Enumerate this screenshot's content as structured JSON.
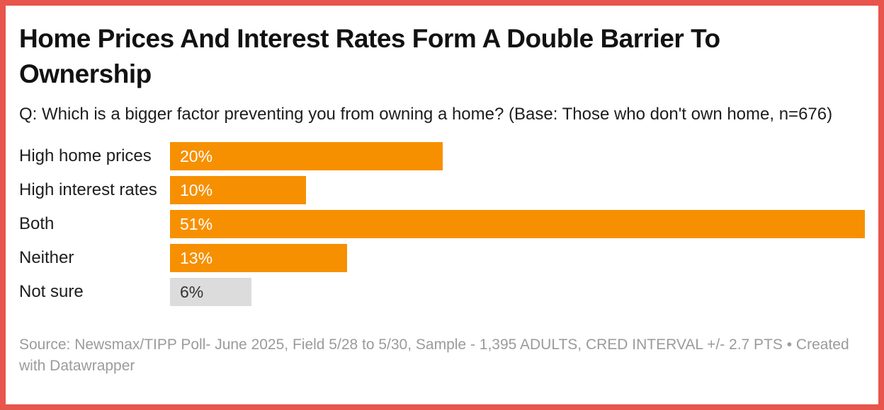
{
  "colors": {
    "frame_border": "#e8554d",
    "bar_primary": "#f79000",
    "bar_muted": "#dcdcdc",
    "bar_label_on_primary": "#ffffff",
    "bar_label_on_muted": "#333333",
    "title_text": "#121212",
    "body_text": "#1d1d1d",
    "source_text": "#9b9b9b"
  },
  "header": {
    "title": "Home Prices And Interest Rates Form A Double Barrier To Ownership",
    "question": "Q: Which is a bigger factor preventing you from owning a home? (Base: Those who don't own home, n=676)"
  },
  "footer": {
    "source_text": "Source: Newsmax/TIPP Poll- June 2025, Field 5/28 to 5/30, Sample - 1,395 ADULTS, CRED INTERVAL +/- 2.7 PTS • Created with Datawrapper"
  },
  "chart_data": {
    "type": "bar",
    "orientation": "horizontal",
    "title": "Home Prices And Interest Rates Form A Double Barrier To Ownership",
    "subtitle": "Q: Which is a bigger factor preventing you from owning a home? (Base: Those who don't own home, n=676)",
    "categories": [
      "High home prices",
      "High interest rates",
      "Both",
      "Neither",
      "Not sure"
    ],
    "values": [
      20,
      10,
      51,
      13,
      6
    ],
    "value_labels": [
      "20%",
      "10%",
      "51%",
      "13%",
      "6%"
    ],
    "unit": "%",
    "xlim": [
      0,
      51
    ],
    "grid": false,
    "axes_shown": false,
    "legend": "none",
    "bar_color_keys": [
      "bar_primary",
      "bar_primary",
      "bar_primary",
      "bar_primary",
      "bar_muted"
    ]
  }
}
